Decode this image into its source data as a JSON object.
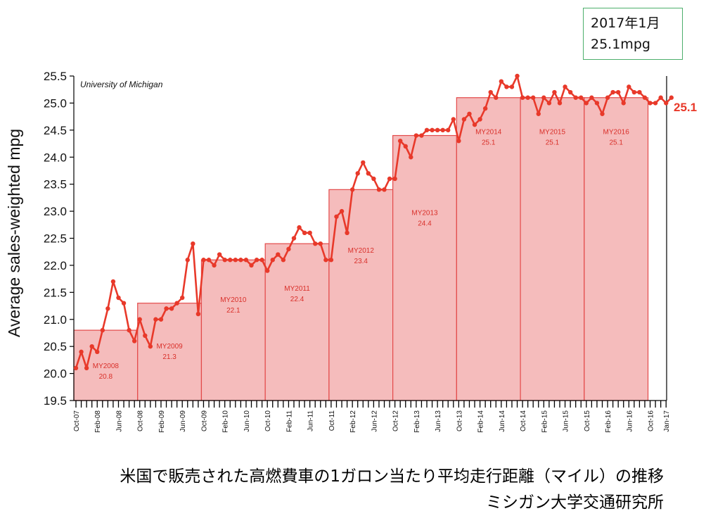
{
  "callout": {
    "date": "2017年1月",
    "value": "25.1mpg"
  },
  "caption": {
    "line1": "米国で販売された高燃費車の1ガロン当たり平均走行距離（マイル）の推移",
    "line2": "ミシガン大学交通研究所"
  },
  "chart_data": {
    "type": "line",
    "title": "",
    "source_label": "University of Michigan",
    "ylabel": "Average sales-weighted mpg",
    "xlabel": "",
    "ylim": [
      19.5,
      25.5
    ],
    "yticks": [
      19.5,
      20.0,
      20.5,
      21.0,
      21.5,
      22.0,
      22.5,
      23.0,
      23.5,
      24.0,
      24.5,
      25.0,
      25.5
    ],
    "x_start": "2007-10",
    "x_end": "2017-01",
    "xtick_labels": [
      "Oct-07",
      "Feb-08",
      "Jun-08",
      "Oct-08",
      "Feb-09",
      "Jun-09",
      "Oct-09",
      "Feb-10",
      "Jun-10",
      "Oct-10",
      "Feb-11",
      "Jun-11",
      "Oct-11",
      "Feb-12",
      "Jun-12",
      "Oct-12",
      "Feb-13",
      "Jun-13",
      "Oct-13",
      "Feb-14",
      "Jun-14",
      "Oct-14",
      "Feb-15",
      "Jun-15",
      "Oct-15",
      "Feb-16",
      "Jun-16",
      "Oct-16",
      "Jan-17"
    ],
    "model_years": [
      {
        "label": "MY2008",
        "value": 20.8,
        "start": "2007-10",
        "end": "2008-09"
      },
      {
        "label": "MY2009",
        "value": 21.3,
        "start": "2008-10",
        "end": "2009-09"
      },
      {
        "label": "MY2010",
        "value": 22.1,
        "start": "2009-10",
        "end": "2010-09"
      },
      {
        "label": "MY2011",
        "value": 22.4,
        "start": "2010-10",
        "end": "2011-09"
      },
      {
        "label": "MY2012",
        "value": 23.4,
        "start": "2011-10",
        "end": "2012-09"
      },
      {
        "label": "MY2013",
        "value": 24.4,
        "start": "2012-10",
        "end": "2013-09"
      },
      {
        "label": "MY2014",
        "value": 25.1,
        "start": "2013-10",
        "end": "2014-09"
      },
      {
        "label": "MY2015",
        "value": 25.1,
        "start": "2014-10",
        "end": "2015-09"
      },
      {
        "label": "MY2016",
        "value": 25.1,
        "start": "2015-10",
        "end": "2016-09"
      }
    ],
    "series": [
      {
        "start": "2007-10",
        "values": [
          20.1,
          20.4,
          20.1,
          20.5,
          20.4,
          20.8,
          21.2,
          21.7,
          21.4,
          21.3,
          20.8,
          20.6,
          21.0,
          20.7,
          20.5,
          21.0,
          21.0,
          21.2,
          21.2,
          21.3,
          21.4,
          22.1,
          22.4,
          21.1,
          22.1,
          22.1,
          22.0,
          22.2,
          22.1,
          22.1,
          22.1,
          22.1,
          22.1,
          22.0,
          22.1,
          22.1,
          21.9,
          22.1,
          22.2,
          22.1,
          22.3,
          22.5,
          22.7,
          22.6,
          22.6,
          22.4,
          22.4,
          22.1,
          22.1,
          22.9,
          23.0,
          22.6,
          23.4,
          23.7,
          23.9,
          23.7,
          23.6,
          23.4,
          23.4,
          23.6,
          23.6,
          24.3,
          24.2,
          24.0,
          24.4,
          24.4,
          24.5,
          24.5,
          24.5,
          24.5,
          24.5,
          24.7,
          24.3,
          24.7,
          24.8,
          24.6,
          24.7,
          24.9,
          25.2,
          25.1,
          25.4,
          25.3,
          25.3,
          25.5,
          25.1,
          25.1,
          25.1,
          24.8,
          25.1,
          25.0,
          25.2,
          25.0,
          25.3,
          25.2,
          25.1,
          25.1,
          25.0,
          25.1,
          25.0,
          24.8,
          25.1,
          25.2,
          25.2,
          25.0,
          25.3,
          25.2,
          25.2,
          25.1,
          25.0,
          25.0,
          25.1,
          25.0,
          25.1
        ]
      }
    ],
    "end_label": "25.1",
    "colors": {
      "line": "#e8392a",
      "fill": "#f5bcbc",
      "bar_edge": "#e34a4a",
      "my_text": "#d9302a",
      "end_label": "#e8392a"
    }
  }
}
